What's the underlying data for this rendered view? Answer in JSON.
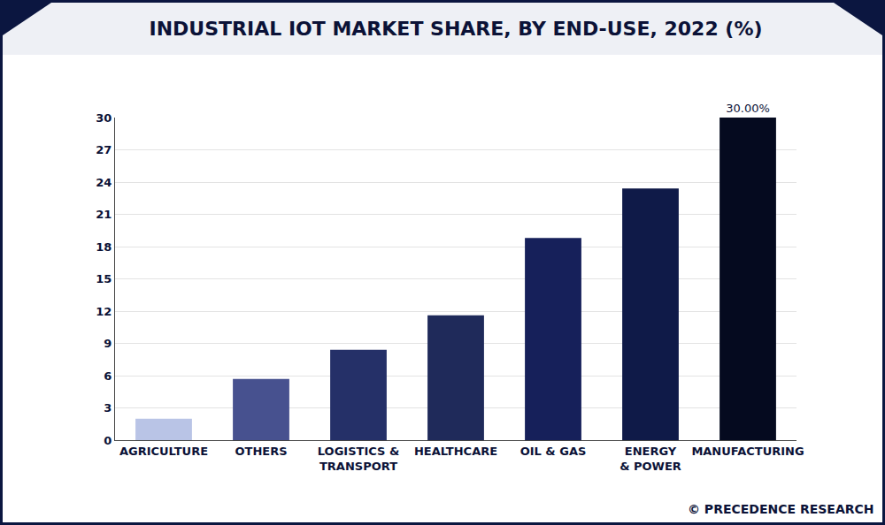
{
  "chart_data": {
    "type": "bar",
    "title": "INDUSTRIAL IOT MARKET SHARE, BY END-USE, 2022 (%)",
    "categories": [
      "AGRICULTURE",
      "OTHERS",
      "LOGISTICS &\nTRANSPORT",
      "HEALTHCARE",
      "OIL & GAS",
      "ENERGY\n& POWER",
      "MANUFACTURING"
    ],
    "values": [
      2.0,
      5.7,
      8.4,
      11.6,
      18.8,
      23.4,
      30.0
    ],
    "value_labels": [
      null,
      null,
      null,
      null,
      null,
      null,
      "30.00%"
    ],
    "data_labels": true,
    "colors": [
      "#b9c4e6",
      "#47518f",
      "#253068",
      "#1f2a5a",
      "#16205a",
      "#0f1a48",
      "#050a1f"
    ],
    "ylim": [
      0,
      30
    ],
    "yticks": [
      0,
      3,
      6,
      9,
      12,
      15,
      18,
      21,
      24,
      27,
      30
    ],
    "grid": true,
    "annotations": [
      {
        "text": "© PRECEDENCE RESEARCH"
      }
    ]
  }
}
